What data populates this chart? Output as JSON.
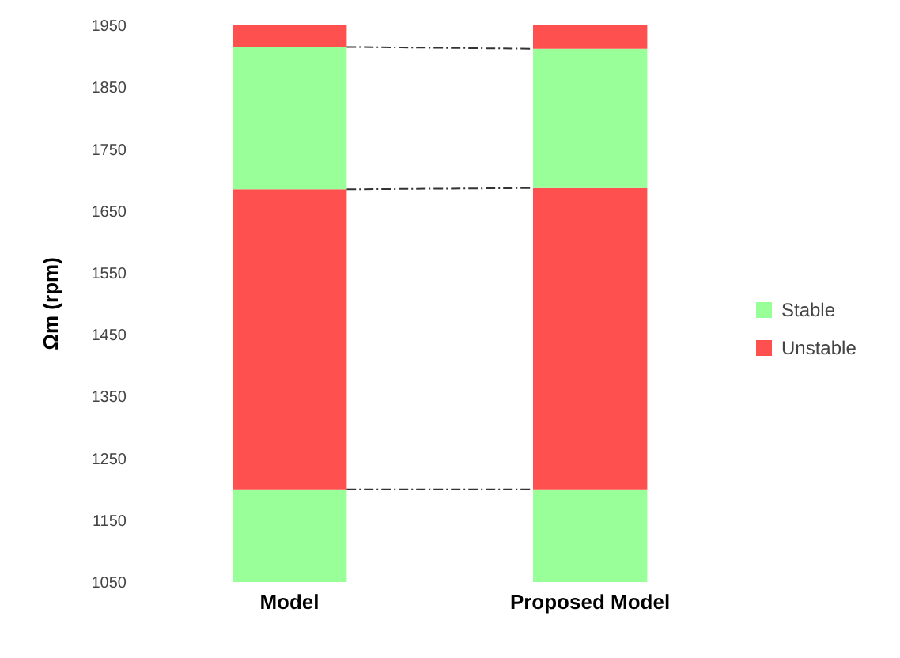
{
  "chart_data": {
    "type": "bar",
    "ylabel": "Ωm (rpm)",
    "categories": [
      "Model",
      "Proposed Model"
    ],
    "series": [
      {
        "name": "Stable",
        "color": "#99ff99",
        "base": [
          1050,
          1050
        ],
        "values": [
          150,
          150
        ]
      },
      {
        "name": "Unstable",
        "color": "#ff5050",
        "base": [
          1200,
          1200
        ],
        "values": [
          485,
          487
        ]
      },
      {
        "color": "#99ff99",
        "base": [
          1685,
          1687
        ],
        "values": [
          230,
          225
        ]
      },
      {
        "color": "#ff5050",
        "base": [
          1915,
          1912
        ],
        "values": [
          35,
          38
        ]
      }
    ],
    "ylim": [
      1050,
      1950
    ],
    "yticks": [
      1050,
      1150,
      1250,
      1350,
      1450,
      1550,
      1650,
      1750,
      1850,
      1950
    ],
    "grid": false,
    "legend": "right"
  }
}
